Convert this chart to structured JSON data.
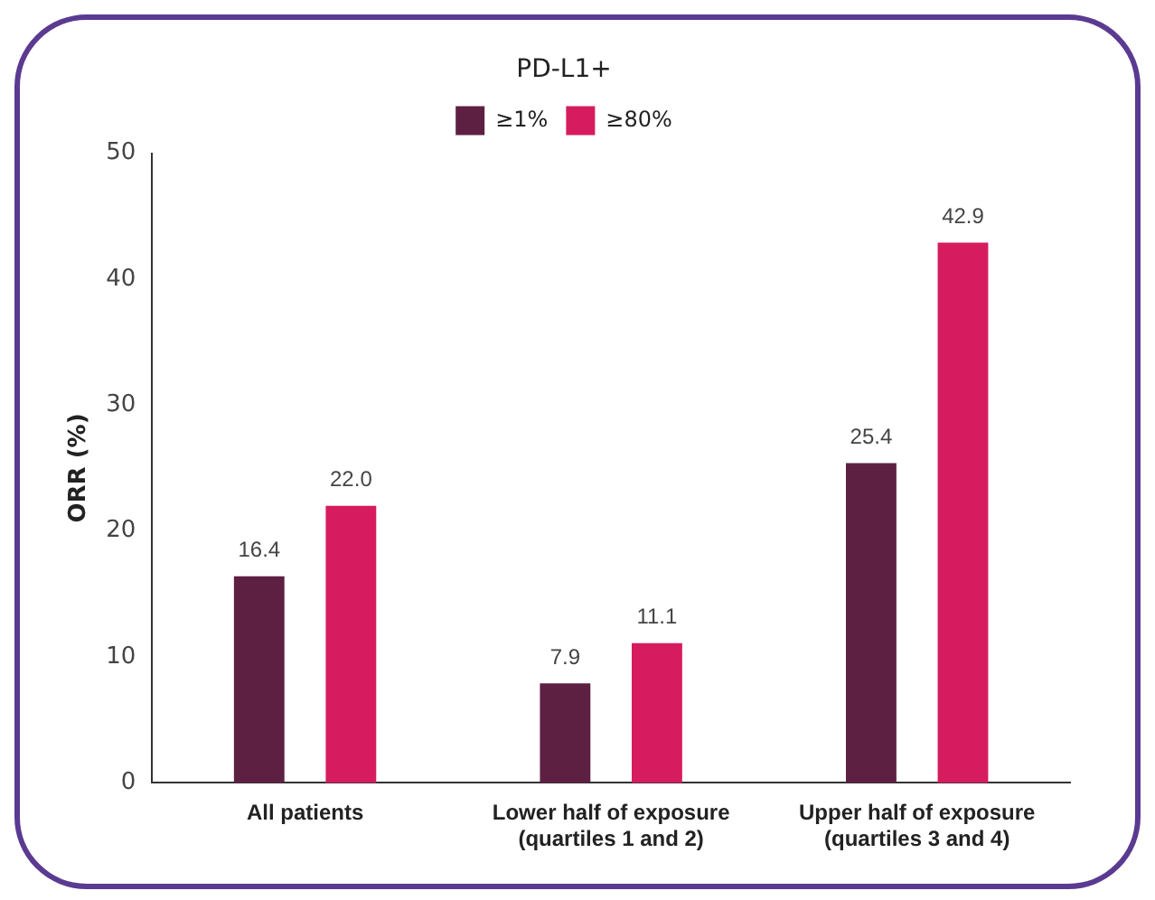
{
  "chart_data": {
    "type": "bar",
    "ylabel": "ORR (%)",
    "legend_title": "PD-L1+",
    "categories": [
      "All patients",
      "Lower half of exposure (quartiles 1 and 2)",
      "Upper half of exposure (quartiles 3 and 4)"
    ],
    "series": [
      {
        "name": "≥1%",
        "color": "#5e2042",
        "values": [
          16.4,
          7.9,
          25.4
        ],
        "value_labels": [
          "16.4",
          "7.9",
          "25.4"
        ]
      },
      {
        "name": "≥80%",
        "color": "#d61c5e",
        "values": [
          22.0,
          11.1,
          42.9
        ],
        "value_labels": [
          "22.0",
          "11.1",
          "42.9"
        ]
      }
    ],
    "ylim": [
      0,
      50
    ],
    "yticks": [
      0,
      10,
      20,
      30,
      40,
      50
    ],
    "grid": false,
    "legend": "top"
  }
}
